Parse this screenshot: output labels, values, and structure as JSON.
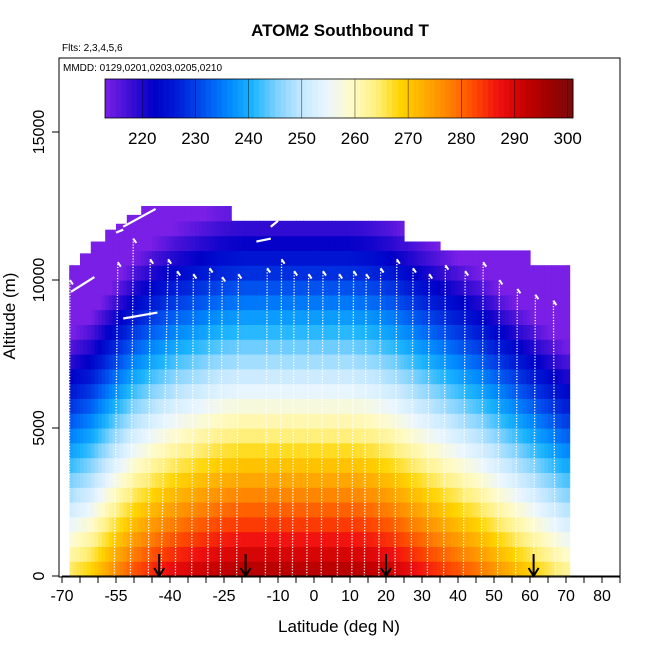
{
  "chart_data": {
    "type": "heatmap",
    "title": "ATOM2 Southbound T",
    "subtitle_flights": "Flts: 2,3,4,5,6",
    "subtitle_dates": "MMDD: 0129,0201,0203,0205,0210",
    "xlabel": "Latitude (deg N)",
    "ylabel": "Altitude (m)",
    "xlim": [
      -70,
      85
    ],
    "ylim": [
      0,
      17500
    ],
    "x_tick_labels": [
      "-70",
      "-55",
      "-40",
      "-25",
      "-10",
      "0",
      "10",
      "20",
      "30",
      "40",
      "50",
      "60",
      "70",
      "80"
    ],
    "x_tick_values": [
      -70,
      -55,
      -40,
      -25,
      -10,
      0,
      10,
      20,
      30,
      40,
      50,
      60,
      70,
      80
    ],
    "x_minor_ticks": [
      -65,
      -60,
      -50,
      -45,
      -35,
      -30,
      -20,
      -15,
      -5,
      5,
      15,
      25,
      35,
      45,
      55,
      65,
      75,
      85
    ],
    "y_tick_labels": [
      "0",
      "5000",
      "10000",
      "15000"
    ],
    "y_tick_values": [
      0,
      5000,
      10000,
      15000
    ],
    "colorbar": {
      "min": 213,
      "max": 301,
      "tick_labels": [
        "220",
        "230",
        "240",
        "250",
        "260",
        "270",
        "280",
        "290",
        "300"
      ],
      "tick_values": [
        220,
        230,
        240,
        250,
        260,
        270,
        280,
        290,
        300
      ],
      "colors": [
        "#7a1fe6",
        "#3d0fd6",
        "#0000c8",
        "#0020d8",
        "#0050ee",
        "#0088ff",
        "#1cb4ff",
        "#80d2ff",
        "#c4e8ff",
        "#eaf6ff",
        "#fffbc8",
        "#fff080",
        "#ffd400",
        "#ffac00",
        "#ff8000",
        "#ff4800",
        "#f01010",
        "#c80000",
        "#a00000",
        "#7a0a0a"
      ]
    },
    "temperature_model": {
      "surface_T_lat_knots": [
        -68,
        -62,
        -56,
        -50,
        -44,
        -38,
        -32,
        -26,
        -20,
        -14,
        -8,
        -2,
        4,
        10,
        16,
        22,
        28,
        34,
        40,
        46,
        52,
        58,
        64,
        70
      ],
      "surface_T_values": [
        266,
        270,
        277,
        283,
        287,
        290,
        292,
        294,
        295,
        295,
        295,
        295,
        295,
        295,
        294,
        292,
        289,
        286,
        283,
        280,
        276,
        272,
        268,
        264
      ],
      "tropopause_alt_lat_knots": [
        -68,
        -56,
        -44,
        -32,
        -20,
        -8,
        4,
        16,
        28,
        40,
        52,
        64,
        70
      ],
      "tropopause_alt_values": [
        9800,
        10800,
        12200,
        13600,
        15000,
        16000,
        16000,
        15800,
        14000,
        12000,
        10400,
        9400,
        9200
      ],
      "lapse_rate_K_per_km": 6.5,
      "stratosphere_T_min": 212
    },
    "data_extent": {
      "lat_range": [
        -68,
        71
      ],
      "top_altitude": [
        {
          "lat_range": [
            -68,
            -65
          ],
          "top": 10500
        },
        {
          "lat_range": [
            -65,
            -62
          ],
          "top": 10900
        },
        {
          "lat_range": [
            -62,
            -58
          ],
          "top": 11300
        },
        {
          "lat_range": [
            -58,
            -55
          ],
          "top": 11700
        },
        {
          "lat_range": [
            -55,
            -52
          ],
          "top": 11900
        },
        {
          "lat_range": [
            -52,
            -48
          ],
          "top": 12200
        },
        {
          "lat_range": [
            -48,
            -23
          ],
          "top": 12500
        },
        {
          "lat_range": [
            -23,
            -9
          ],
          "top": 12000
        },
        {
          "lat_range": [
            -9,
            25
          ],
          "top": 12000
        },
        {
          "lat_range": [
            25,
            35
          ],
          "top": 11300
        },
        {
          "lat_range": [
            35,
            60
          ],
          "top": 11000
        },
        {
          "lat_range": [
            60,
            71
          ],
          "top": 10500
        }
      ]
    },
    "flight_profiles": [
      {
        "lat_surface": -68.0,
        "lat_top": -67.8,
        "top": 10000
      },
      {
        "lat_surface": -55.5,
        "lat_top": -54.5,
        "top": 10600
      },
      {
        "lat_surface": -51.0,
        "lat_top": -50.2,
        "top": 11400
      },
      {
        "lat_surface": -46.0,
        "lat_top": -45.5,
        "top": 10700
      },
      {
        "lat_surface": -42.5,
        "lat_top": -40.5,
        "top": 10700
      },
      {
        "lat_surface": -38.5,
        "lat_top": -38.0,
        "top": 10300
      },
      {
        "lat_surface": -34.0,
        "lat_top": -33.5,
        "top": 10200
      },
      {
        "lat_surface": -29.5,
        "lat_top": -29.0,
        "top": 10400
      },
      {
        "lat_surface": -26.0,
        "lat_top": -25.5,
        "top": 10100
      },
      {
        "lat_surface": -21.5,
        "lat_top": -21.0,
        "top": 10200
      },
      {
        "lat_surface": -13.5,
        "lat_top": -13.0,
        "top": 10400
      },
      {
        "lat_surface": -9.5,
        "lat_top": -9.0,
        "top": 10700
      },
      {
        "lat_surface": -6.0,
        "lat_top": -5.5,
        "top": 10300
      },
      {
        "lat_surface": -2.0,
        "lat_top": -1.5,
        "top": 10200
      },
      {
        "lat_surface": 2.0,
        "lat_top": 2.5,
        "top": 10300
      },
      {
        "lat_surface": 6.5,
        "lat_top": 7.0,
        "top": 10200
      },
      {
        "lat_surface": 10.5,
        "lat_top": 11.0,
        "top": 10300
      },
      {
        "lat_surface": 14.0,
        "lat_top": 14.5,
        "top": 10200
      },
      {
        "lat_surface": 18.0,
        "lat_top": 18.5,
        "top": 10400
      },
      {
        "lat_surface": 22.5,
        "lat_top": 23.0,
        "top": 10700
      },
      {
        "lat_surface": 27.0,
        "lat_top": 27.5,
        "top": 10400
      },
      {
        "lat_surface": 31.5,
        "lat_top": 32.0,
        "top": 10200
      },
      {
        "lat_surface": 36.0,
        "lat_top": 36.5,
        "top": 10500
      },
      {
        "lat_surface": 41.5,
        "lat_top": 42.0,
        "top": 10300
      },
      {
        "lat_surface": 46.5,
        "lat_top": 47.0,
        "top": 10600
      },
      {
        "lat_surface": 51.0,
        "lat_top": 51.5,
        "top": 10000
      },
      {
        "lat_surface": 56.0,
        "lat_top": 56.5,
        "top": 9700
      },
      {
        "lat_surface": 61.0,
        "lat_top": 61.5,
        "top": 9500
      },
      {
        "lat_surface": 67.0,
        "lat_top": 66.5,
        "top": 9300
      }
    ],
    "flight_cruise_segments": [
      {
        "lat_start": -67.5,
        "lat_end": -61.0,
        "alt_start": 9600,
        "alt_end": 10100
      },
      {
        "lat_start": -55.0,
        "lat_end": -53.0,
        "alt_start": 11600,
        "alt_end": 11700
      },
      {
        "lat_start": -53.0,
        "lat_end": -44.0,
        "alt_start": 11800,
        "alt_end": 12400
      },
      {
        "lat_start": -53.0,
        "lat_end": -43.5,
        "alt_start": 8700,
        "alt_end": 8900
      },
      {
        "lat_start": -16.0,
        "lat_end": -12.0,
        "alt_start": 11300,
        "alt_end": 11400
      },
      {
        "lat_start": -12.0,
        "lat_end": -10.0,
        "alt_start": 11800,
        "alt_end": 12000
      },
      {
        "lat_start": 62.5,
        "lat_end": 68.0,
        "alt_start": 11300,
        "alt_end": 11200
      }
    ],
    "arrow_latitudes": [
      -43,
      -19,
      20,
      61
    ]
  }
}
